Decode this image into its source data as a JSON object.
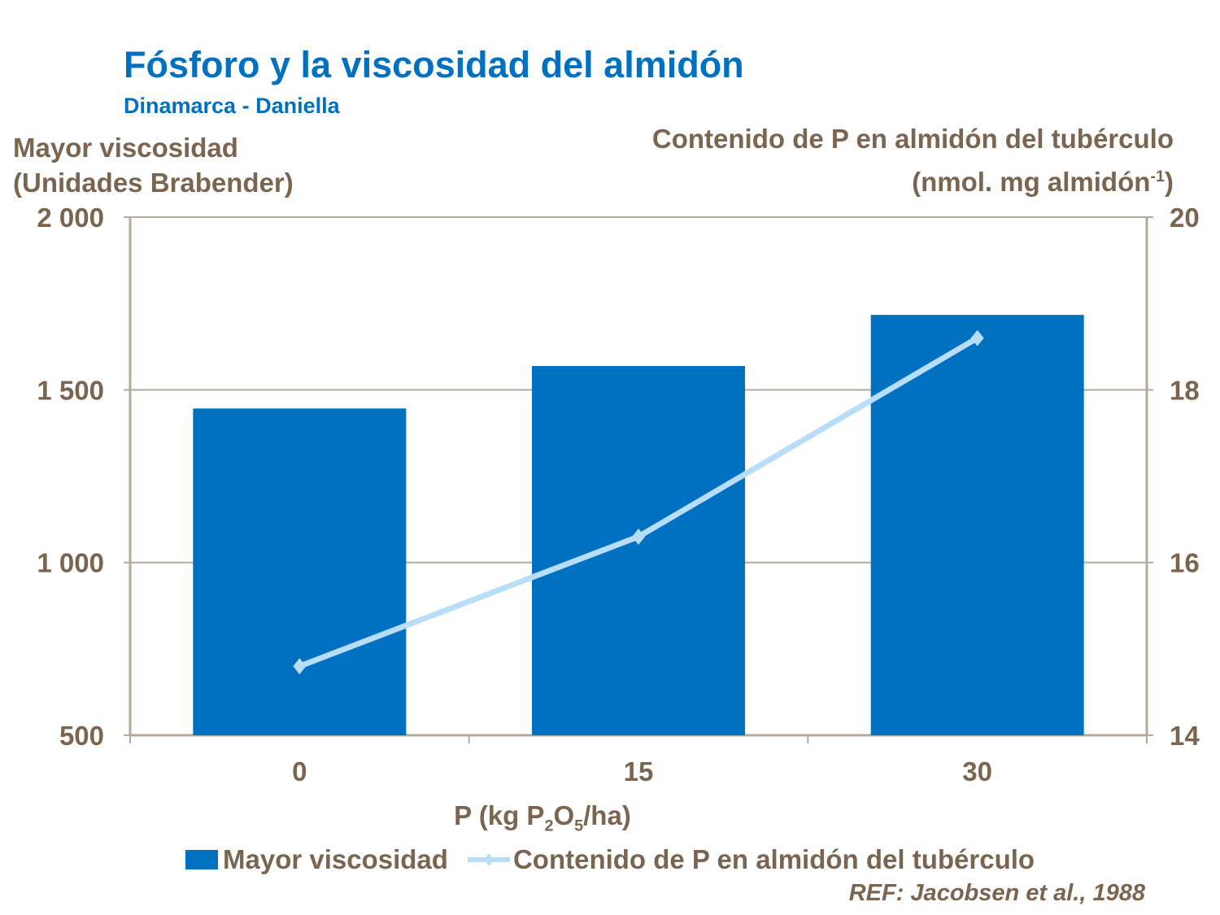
{
  "chart_data": {
    "type": "bar+line",
    "title": "Fósforo y la viscosidad del almidón",
    "subtitle": "Dinamarca  - Daniella",
    "xlabel": {
      "pre": "P (kg P",
      "sub1": "2",
      "mid": "O",
      "sub2": "5",
      "post": "/ha)"
    },
    "ylabel_left": [
      "Mayor viscosidad",
      "(Unidades Brabender)"
    ],
    "ylabel_right": {
      "line1": "Contenido de P en almidón del tubérculo",
      "line2_pre": "(nmol. mg almidón",
      "line2_sup": "-1",
      "line2_post": ")"
    },
    "categories": [
      "0",
      "15",
      "30"
    ],
    "y_left": {
      "lim": [
        500,
        2000
      ],
      "ticks": [
        500,
        1000,
        1500,
        2000
      ],
      "tick_labels": [
        "500",
        "1 000",
        "1 500",
        "2 000"
      ]
    },
    "y_right": {
      "lim": [
        14,
        20
      ],
      "ticks": [
        14,
        16,
        18,
        20
      ],
      "tick_labels": [
        "14",
        "16",
        "18",
        "20"
      ]
    },
    "grid": true,
    "series": [
      {
        "name": "Mayor viscosidad",
        "type": "bar",
        "axis": "left",
        "values": [
          1446,
          1569,
          1717
        ],
        "color": "#0070c0"
      },
      {
        "name": "Contenido de P en almidón del tubérculo",
        "type": "line",
        "axis": "right",
        "values": [
          14.8,
          16.3,
          18.6
        ],
        "color": "#b7ddf8",
        "marker": "diamond"
      }
    ],
    "legend": "bottom",
    "reference": "REF: Jacobsen et al., 1988"
  },
  "colors": {
    "text": "#7a6650",
    "title": "#0070c0",
    "axis": "#b3a99d"
  }
}
